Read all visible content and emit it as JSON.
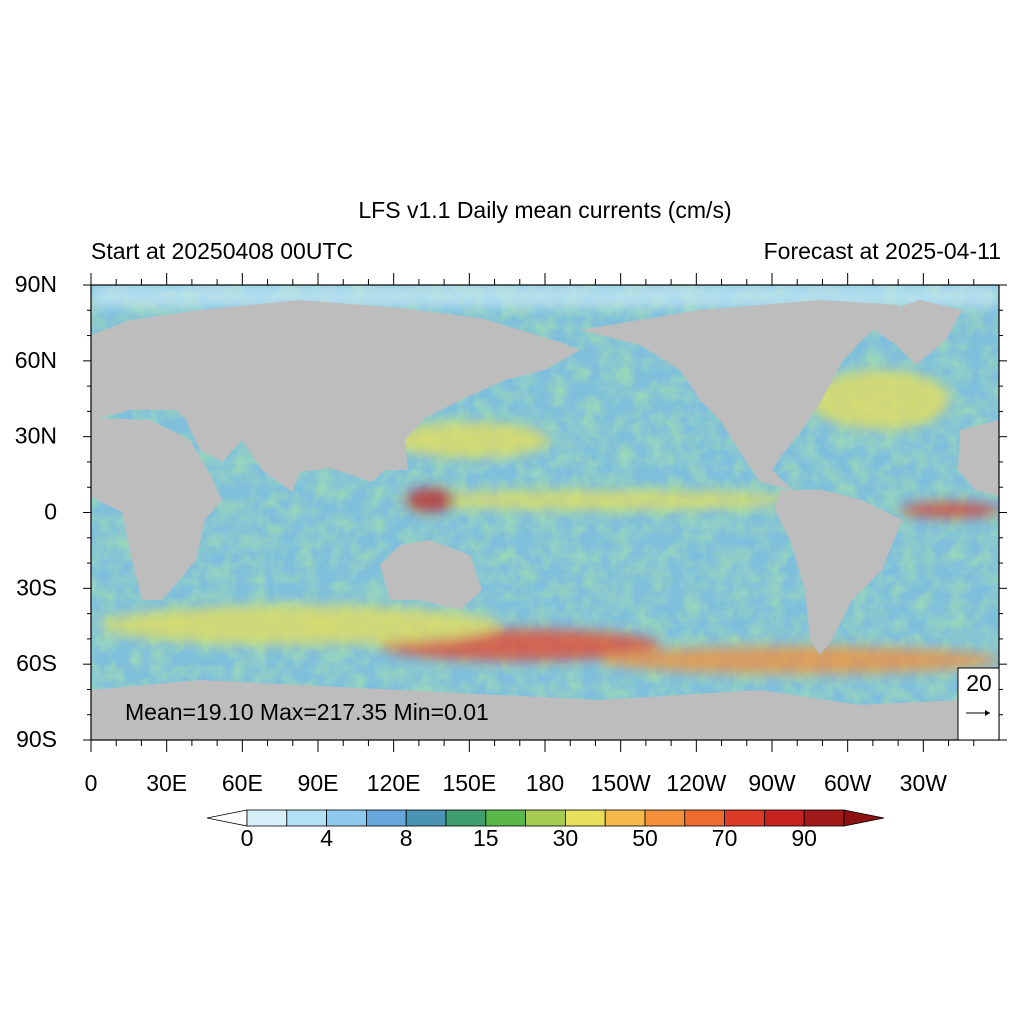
{
  "title": "LFS v1.1 Daily mean currents (cm/s)",
  "left_subtitle": "Start at 20250408 00UTC",
  "right_subtitle": "Forecast at 2025-04-11",
  "lat_labels": [
    "90N",
    "60N",
    "30N",
    "0",
    "30S",
    "60S",
    "90S"
  ],
  "lon_labels": [
    "0",
    "30E",
    "60E",
    "90E",
    "120E",
    "150E",
    "180",
    "150W",
    "120W",
    "90W",
    "60W",
    "30W"
  ],
  "stats": "Mean=19.10  Max=217.35  Min=0.01",
  "reference_vector": "20",
  "colorbar": {
    "labels": [
      "0",
      "4",
      "8",
      "15",
      "30",
      "50",
      "70",
      "90"
    ],
    "colors": [
      "#d6eff9",
      "#b2e0f4",
      "#8cc9ec",
      "#66a6da",
      "#4a93b2",
      "#3e9e70",
      "#5ab84a",
      "#a6cb51",
      "#e8df5a",
      "#f7b84b",
      "#f58f3b",
      "#ee6a2e",
      "#dc3b28",
      "#c4211f",
      "#a11a1a"
    ],
    "under_color": "#ffffff",
    "over_color": "#8c1212"
  }
}
